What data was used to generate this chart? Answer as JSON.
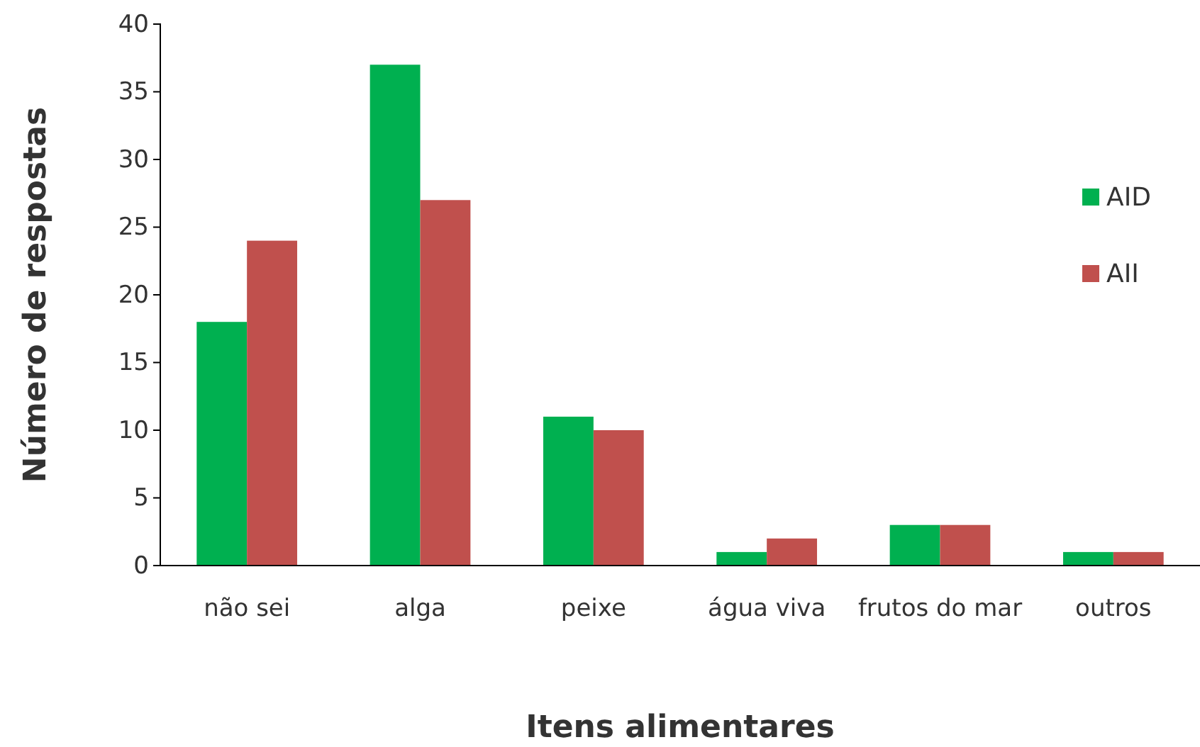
{
  "chart_data": {
    "type": "bar",
    "xlabel": "Itens alimentares",
    "ylabel": "Número de respostas",
    "categories": [
      "não sei",
      "alga",
      "peixe",
      "água viva",
      "frutos do mar",
      "outros"
    ],
    "series": [
      {
        "name": "AID",
        "color": "#00b050",
        "values": [
          18,
          37,
          11,
          1,
          3,
          1
        ]
      },
      {
        "name": "AII",
        "color": "#c0504d",
        "values": [
          24,
          27,
          10,
          2,
          3,
          1
        ]
      }
    ],
    "ylim": [
      0,
      40
    ],
    "yticks": [
      0,
      5,
      10,
      15,
      20,
      25,
      30,
      35,
      40
    ],
    "grid": false,
    "legend": "right"
  }
}
